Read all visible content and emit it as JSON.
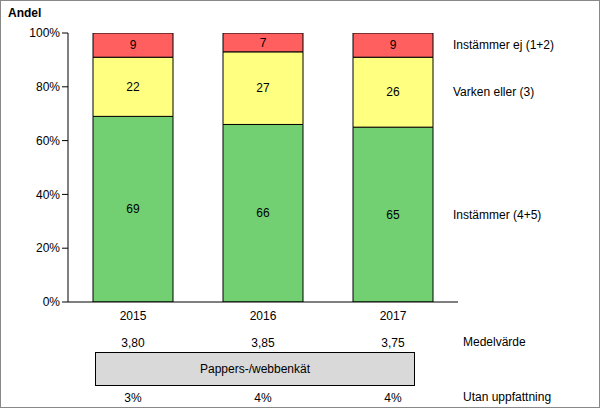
{
  "chart_data": {
    "type": "bar",
    "stacked": true,
    "data_labels": true,
    "y_label": "Andel",
    "categories": [
      "2015",
      "2016",
      "2017"
    ],
    "series": [
      {
        "name": "Instämmer (4+5)",
        "color": "#72d072",
        "values": [
          69,
          66,
          65
        ]
      },
      {
        "name": "Varken eller (3)",
        "color": "#ffff80",
        "values": [
          22,
          27,
          26
        ]
      },
      {
        "name": "Instämmer ej (1+2)",
        "color": "#ff5f5f",
        "values": [
          9,
          7,
          9
        ]
      }
    ],
    "ylim": [
      0,
      100
    ],
    "yticks": [
      {
        "value": 0,
        "label": "0%"
      },
      {
        "value": 20,
        "label": "20%"
      },
      {
        "value": 40,
        "label": "40%"
      },
      {
        "value": 60,
        "label": "60%"
      },
      {
        "value": 80,
        "label": "80%"
      },
      {
        "value": 100,
        "label": "100%"
      }
    ],
    "table_rows": [
      {
        "name": "Medelvärde",
        "values": [
          3.8,
          3.85,
          3.75
        ],
        "value_labels": [
          "3,80",
          "3,85",
          "3,75"
        ]
      },
      {
        "name": "Utan uppfattning",
        "values": [
          3,
          4,
          4
        ],
        "value_labels": [
          "3%",
          "4%",
          "4%"
        ]
      }
    ],
    "box_label": "Pappers-/webbenkät"
  }
}
